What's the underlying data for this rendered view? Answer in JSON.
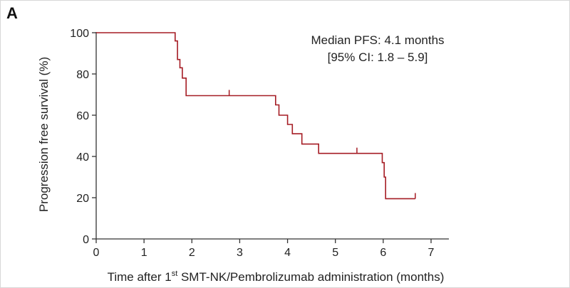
{
  "panel_label": "A",
  "chart_data": {
    "type": "line",
    "subtype": "kaplan-meier step curve",
    "xlabel_pre": "Time after 1",
    "xlabel_sup": "st",
    "xlabel_post": " SMT-NK/Pembrolizumab administration (months)",
    "ylabel": "Progression free survival (%)",
    "xlim": [
      0,
      7
    ],
    "ylim": [
      0,
      100
    ],
    "xticks": [
      "0",
      "1",
      "2",
      "3",
      "4",
      "5",
      "6",
      "7"
    ],
    "yticks": [
      "0",
      "20",
      "40",
      "60",
      "80",
      "100"
    ],
    "annotation_line1": "Median PFS: 4.1 months",
    "annotation_line2": "[95% CI: 1.8 – 5.9]",
    "series_color": "#a51c24",
    "grid": false,
    "series": [
      {
        "steps": [
          [
            0,
            100
          ],
          [
            1.65,
            100
          ],
          [
            1.65,
            96
          ],
          [
            1.7,
            96
          ],
          [
            1.7,
            87
          ],
          [
            1.75,
            87
          ],
          [
            1.75,
            83
          ],
          [
            1.8,
            83
          ],
          [
            1.8,
            78
          ],
          [
            1.88,
            78
          ],
          [
            1.88,
            69.5
          ],
          [
            3.75,
            69.5
          ],
          [
            3.75,
            65
          ],
          [
            3.82,
            65
          ],
          [
            3.82,
            60
          ],
          [
            4.0,
            60
          ],
          [
            4.0,
            55.5
          ],
          [
            4.1,
            55.5
          ],
          [
            4.1,
            51
          ],
          [
            4.3,
            51
          ],
          [
            4.3,
            46
          ],
          [
            4.65,
            46
          ],
          [
            4.65,
            41.5
          ],
          [
            5.98,
            41.5
          ],
          [
            5.98,
            37
          ],
          [
            6.02,
            37
          ],
          [
            6.02,
            30
          ],
          [
            6.05,
            30
          ],
          [
            6.05,
            19.5
          ],
          [
            6.67,
            19.5
          ]
        ],
        "censored": [
          [
            2.78,
            69.5
          ],
          [
            5.45,
            41.5
          ],
          [
            6.67,
            19.5
          ]
        ]
      }
    ]
  }
}
